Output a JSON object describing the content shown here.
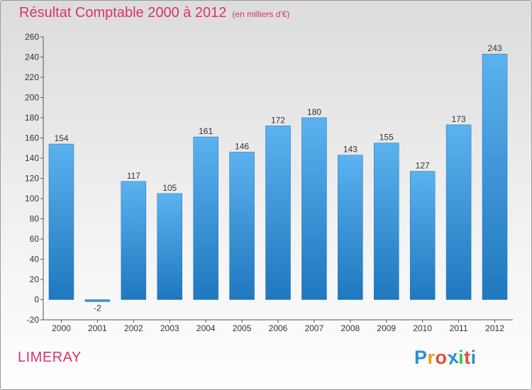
{
  "chart_data": {
    "type": "bar",
    "title": "Résultat Comptable 2000 à 2012",
    "subtitle": "(en milliers d'€)",
    "categories": [
      "2000",
      "2001",
      "2002",
      "2003",
      "2004",
      "2005",
      "2006",
      "2007",
      "2008",
      "2009",
      "2010",
      "2011",
      "2012"
    ],
    "values": [
      154,
      -2,
      117,
      105,
      161,
      146,
      172,
      180,
      143,
      155,
      127,
      173,
      243
    ],
    "ylim": [
      -20,
      260
    ],
    "yticks": [
      -20,
      0,
      20,
      40,
      60,
      80,
      100,
      120,
      140,
      160,
      180,
      200,
      220,
      240,
      260
    ],
    "grid": false,
    "xlabel": "",
    "ylabel": "",
    "bar_color": "#4a9ee0"
  },
  "place_name": "LIMERAY",
  "logo": {
    "letters": [
      "P",
      "r",
      "o",
      "x",
      "i",
      "t",
      "i"
    ],
    "colors": [
      "#2a8fd6",
      "#f39c12",
      "#e74c3c",
      "#2a8fd6",
      "#2ecc40",
      "#e74c3c",
      "#2a8fd6"
    ]
  },
  "colors": {
    "title": "#d9326c",
    "axis": "#555555",
    "bar_light": "#5bb2ef",
    "bar_dark": "#1f78bf"
  }
}
